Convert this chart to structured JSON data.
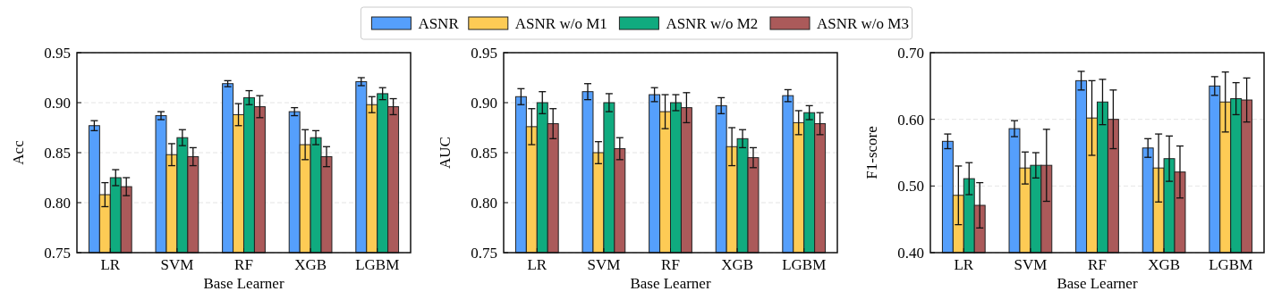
{
  "chart_data": [
    {
      "type": "bar",
      "xlabel": "Base Learner",
      "ylabel": "Acc",
      "categories": [
        "LR",
        "SVM",
        "RF",
        "XGB",
        "LGBM"
      ],
      "ylim": [
        0.75,
        0.95
      ],
      "yticks": [
        0.75,
        {
          "value": 0.8,
          "label": "0.80"
        },
        0.85,
        {
          "value": 0.9,
          "label": "0.90"
        },
        0.95
      ],
      "grid": "y",
      "legend": "top",
      "series": [
        {
          "name": "ASNR",
          "color": "#559ffc",
          "values": [
            0.877,
            0.887,
            0.919,
            0.891,
            0.921
          ],
          "errors": [
            0.005,
            0.004,
            0.003,
            0.004,
            0.004
          ]
        },
        {
          "name": "ASNR w/o M1",
          "color": "#fdcb55",
          "values": [
            0.808,
            0.848,
            0.888,
            0.858,
            0.898
          ],
          "errors": [
            0.012,
            0.011,
            0.011,
            0.015,
            0.008
          ]
        },
        {
          "name": "ASNR w/o M2",
          "color": "#10ab7f",
          "values": [
            0.825,
            0.865,
            0.905,
            0.865,
            0.909
          ],
          "errors": [
            0.008,
            0.008,
            0.007,
            0.007,
            0.006
          ]
        },
        {
          "name": "ASNR w/o M3",
          "color": "#ab5a5a",
          "values": [
            0.816,
            0.846,
            0.896,
            0.846,
            0.896
          ],
          "errors": [
            0.009,
            0.009,
            0.011,
            0.01,
            0.008
          ]
        }
      ]
    },
    {
      "type": "bar",
      "xlabel": "Base Learner",
      "ylabel": "AUC",
      "categories": [
        "LR",
        "SVM",
        "RF",
        "XGB",
        "LGBM"
      ],
      "ylim": [
        0.75,
        0.95
      ],
      "yticks": [
        0.75,
        {
          "value": 0.8,
          "label": "0.80"
        },
        0.85,
        {
          "value": 0.9,
          "label": "0.90"
        },
        0.95
      ],
      "grid": "y",
      "series": [
        {
          "color": "#559ffc",
          "values": [
            0.906,
            0.911,
            0.908,
            0.897,
            0.907
          ],
          "errors": [
            0.008,
            0.008,
            0.007,
            0.008,
            0.006
          ]
        },
        {
          "color": "#fdcb55",
          "values": [
            0.876,
            0.85,
            0.891,
            0.856,
            0.88
          ],
          "errors": [
            0.018,
            0.011,
            0.017,
            0.019,
            0.012
          ]
        },
        {
          "color": "#10ab7f",
          "values": [
            0.9,
            0.9,
            0.9,
            0.864,
            0.89
          ],
          "errors": [
            0.011,
            0.009,
            0.008,
            0.009,
            0.007
          ]
        },
        {
          "color": "#ab5a5a",
          "values": [
            0.879,
            0.854,
            0.895,
            0.845,
            0.879
          ],
          "errors": [
            0.015,
            0.011,
            0.015,
            0.01,
            0.011
          ]
        }
      ]
    },
    {
      "type": "bar",
      "xlabel": "Base Learner",
      "ylabel": "F1-score",
      "categories": [
        "LR",
        "SVM",
        "RF",
        "XGB",
        "LGBM"
      ],
      "ylim": [
        0.4,
        0.7
      ],
      "yticks": [
        {
          "value": 0.4,
          "label": "0.40"
        },
        {
          "value": 0.5,
          "label": "0.50"
        },
        {
          "value": 0.6,
          "label": "0.60"
        },
        {
          "value": 0.7,
          "label": "0.70"
        }
      ],
      "grid": "y",
      "series": [
        {
          "color": "#559ffc",
          "values": [
            0.567,
            0.586,
            0.658,
            0.557,
            0.65
          ],
          "errors": [
            0.011,
            0.012,
            0.014,
            0.014,
            0.014
          ]
        },
        {
          "color": "#fdcb55",
          "values": [
            0.486,
            0.527,
            0.602,
            0.527,
            0.626
          ],
          "errors": [
            0.044,
            0.024,
            0.056,
            0.051,
            0.045
          ]
        },
        {
          "color": "#10ab7f",
          "values": [
            0.511,
            0.531,
            0.626,
            0.541,
            0.631
          ],
          "errors": [
            0.024,
            0.019,
            0.034,
            0.034,
            0.024
          ]
        },
        {
          "color": "#ab5a5a",
          "values": [
            0.471,
            0.531,
            0.6,
            0.521,
            0.629
          ],
          "errors": [
            0.034,
            0.054,
            0.044,
            0.039,
            0.033
          ]
        }
      ]
    }
  ]
}
